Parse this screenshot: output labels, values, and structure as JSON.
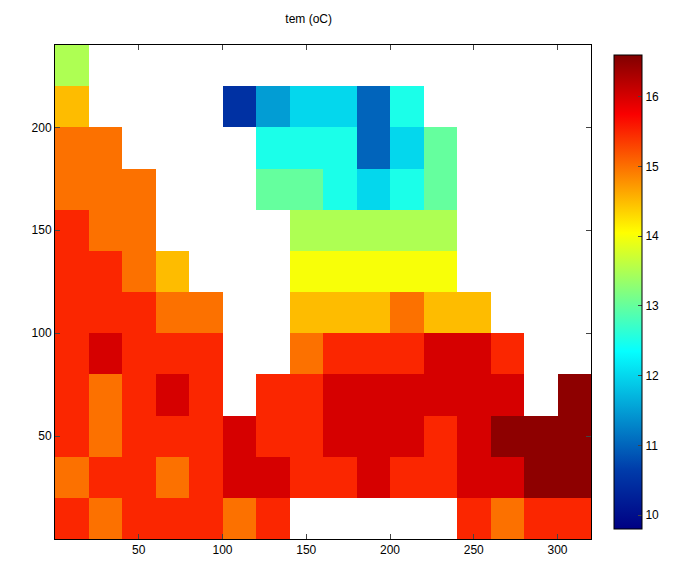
{
  "chart_data": {
    "type": "heatmap",
    "title": "tem (oC)",
    "x": [
      10,
      30,
      50,
      70,
      90,
      110,
      130,
      150,
      170,
      190,
      210,
      230,
      250,
      270,
      290,
      310
    ],
    "y": [
      10,
      30,
      50,
      70,
      90,
      110,
      130,
      150,
      170,
      190,
      210,
      230
    ],
    "cells": [
      [
        15.5,
        15.0,
        15.5,
        15.5,
        15.5,
        15.0,
        15.5,
        null,
        null,
        null,
        null,
        null,
        15.5,
        15.0,
        15.5,
        15.5
      ],
      [
        15.0,
        15.5,
        15.5,
        15.0,
        15.5,
        16.0,
        16.0,
        15.5,
        15.5,
        16.0,
        15.5,
        15.5,
        16.0,
        16.0,
        16.5,
        16.5
      ],
      [
        15.5,
        15.0,
        15.5,
        15.5,
        15.5,
        16.0,
        15.5,
        15.5,
        16.0,
        16.0,
        16.0,
        15.5,
        16.0,
        16.5,
        16.5,
        16.5
      ],
      [
        15.5,
        15.0,
        15.5,
        16.0,
        15.5,
        null,
        15.5,
        15.5,
        16.0,
        16.0,
        16.0,
        16.0,
        16.0,
        16.0,
        null,
        16.5
      ],
      [
        15.5,
        16.0,
        15.5,
        15.5,
        15.5,
        null,
        null,
        15.0,
        15.5,
        15.5,
        15.5,
        16.0,
        16.0,
        15.5,
        null,
        null
      ],
      [
        15.5,
        15.5,
        15.5,
        15.0,
        15.0,
        null,
        null,
        14.5,
        14.5,
        14.5,
        15.0,
        14.5,
        14.5,
        null,
        null,
        null
      ],
      [
        15.5,
        15.5,
        15.0,
        14.5,
        null,
        null,
        null,
        14.0,
        14.0,
        14.0,
        14.0,
        14.0,
        null,
        null,
        null,
        null
      ],
      [
        15.5,
        15.0,
        15.0,
        null,
        null,
        null,
        null,
        13.5,
        13.5,
        13.5,
        13.5,
        13.5,
        null,
        null,
        null,
        null
      ],
      [
        15.0,
        15.0,
        15.0,
        null,
        null,
        null,
        13.0,
        13.0,
        12.5,
        12.0,
        12.5,
        13.0,
        null,
        null,
        null,
        null
      ],
      [
        15.0,
        15.0,
        null,
        null,
        null,
        null,
        12.5,
        12.5,
        12.5,
        11.0,
        12.0,
        13.0,
        null,
        null,
        null,
        null
      ],
      [
        14.5,
        null,
        null,
        null,
        null,
        10.5,
        11.5,
        12.0,
        12.0,
        11.0,
        12.5,
        null,
        null,
        null,
        null,
        null
      ],
      [
        13.5,
        null,
        null,
        null,
        null,
        null,
        null,
        null,
        null,
        null,
        null,
        null,
        null,
        null,
        null,
        null
      ]
    ],
    "xlim": [
      0,
      320
    ],
    "ylim": [
      0,
      240
    ],
    "xticks": [
      50,
      100,
      150,
      200,
      250,
      300
    ],
    "yticks": [
      50,
      100,
      150,
      200
    ],
    "colorbar_range": [
      9.8,
      16.6
    ],
    "colorbar_ticks": [
      10,
      11,
      12,
      13,
      14,
      15,
      16
    ]
  }
}
